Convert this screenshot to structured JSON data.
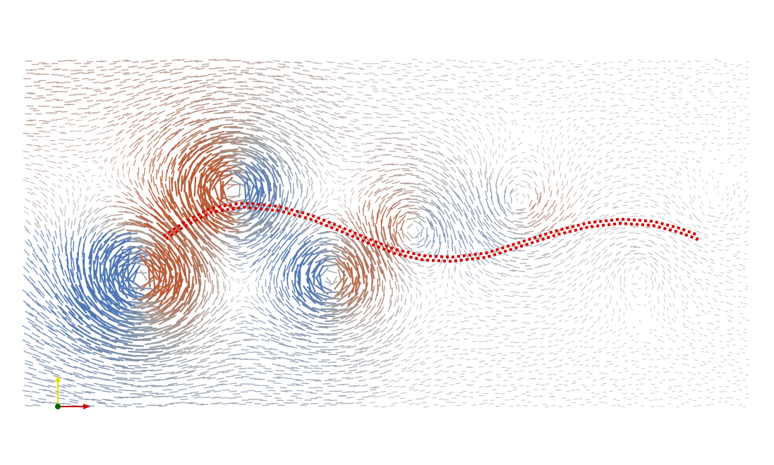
{
  "viewport": {
    "background": "#ffffff",
    "render_style": "glyph-vector-field",
    "description_tag": "flow-visualization"
  },
  "colors": {
    "cold": "#4f77b5",
    "neutral": "#a7a7a7",
    "warm": "#b85a35",
    "filament": "#d40000",
    "axis_x": "#d00000",
    "axis_y": "#dddd00",
    "axis_origin": "#006400"
  },
  "flow": {
    "vortices": [
      {
        "cx": 200,
        "cy": 395,
        "strength": 1.0,
        "sign": -1
      },
      {
        "cx": 330,
        "cy": 270,
        "strength": 0.85,
        "sign": 1
      },
      {
        "cx": 470,
        "cy": 395,
        "strength": 0.75,
        "sign": -1
      },
      {
        "cx": 585,
        "cy": 325,
        "strength": 0.55,
        "sign": 1
      },
      {
        "cx": 735,
        "cy": 290,
        "strength": 0.45,
        "sign": -1
      },
      {
        "cx": 905,
        "cy": 380,
        "strength": 0.3,
        "sign": 1
      },
      {
        "cx": 1010,
        "cy": 300,
        "strength": 0.2,
        "sign": -1
      }
    ]
  },
  "filament": {
    "path": [
      [
        232,
        338
      ],
      [
        262,
        318
      ],
      [
        300,
        298
      ],
      [
        345,
        291
      ],
      [
        395,
        296
      ],
      [
        440,
        308
      ],
      [
        480,
        324
      ],
      [
        520,
        341
      ],
      [
        560,
        357
      ],
      [
        600,
        366
      ],
      [
        640,
        368
      ],
      [
        690,
        362
      ],
      [
        740,
        346
      ],
      [
        790,
        330
      ],
      [
        835,
        319
      ],
      [
        880,
        314
      ],
      [
        925,
        317
      ],
      [
        960,
        326
      ],
      [
        990,
        337
      ]
    ]
  },
  "axes": {
    "x_label": "",
    "y_label": ""
  }
}
